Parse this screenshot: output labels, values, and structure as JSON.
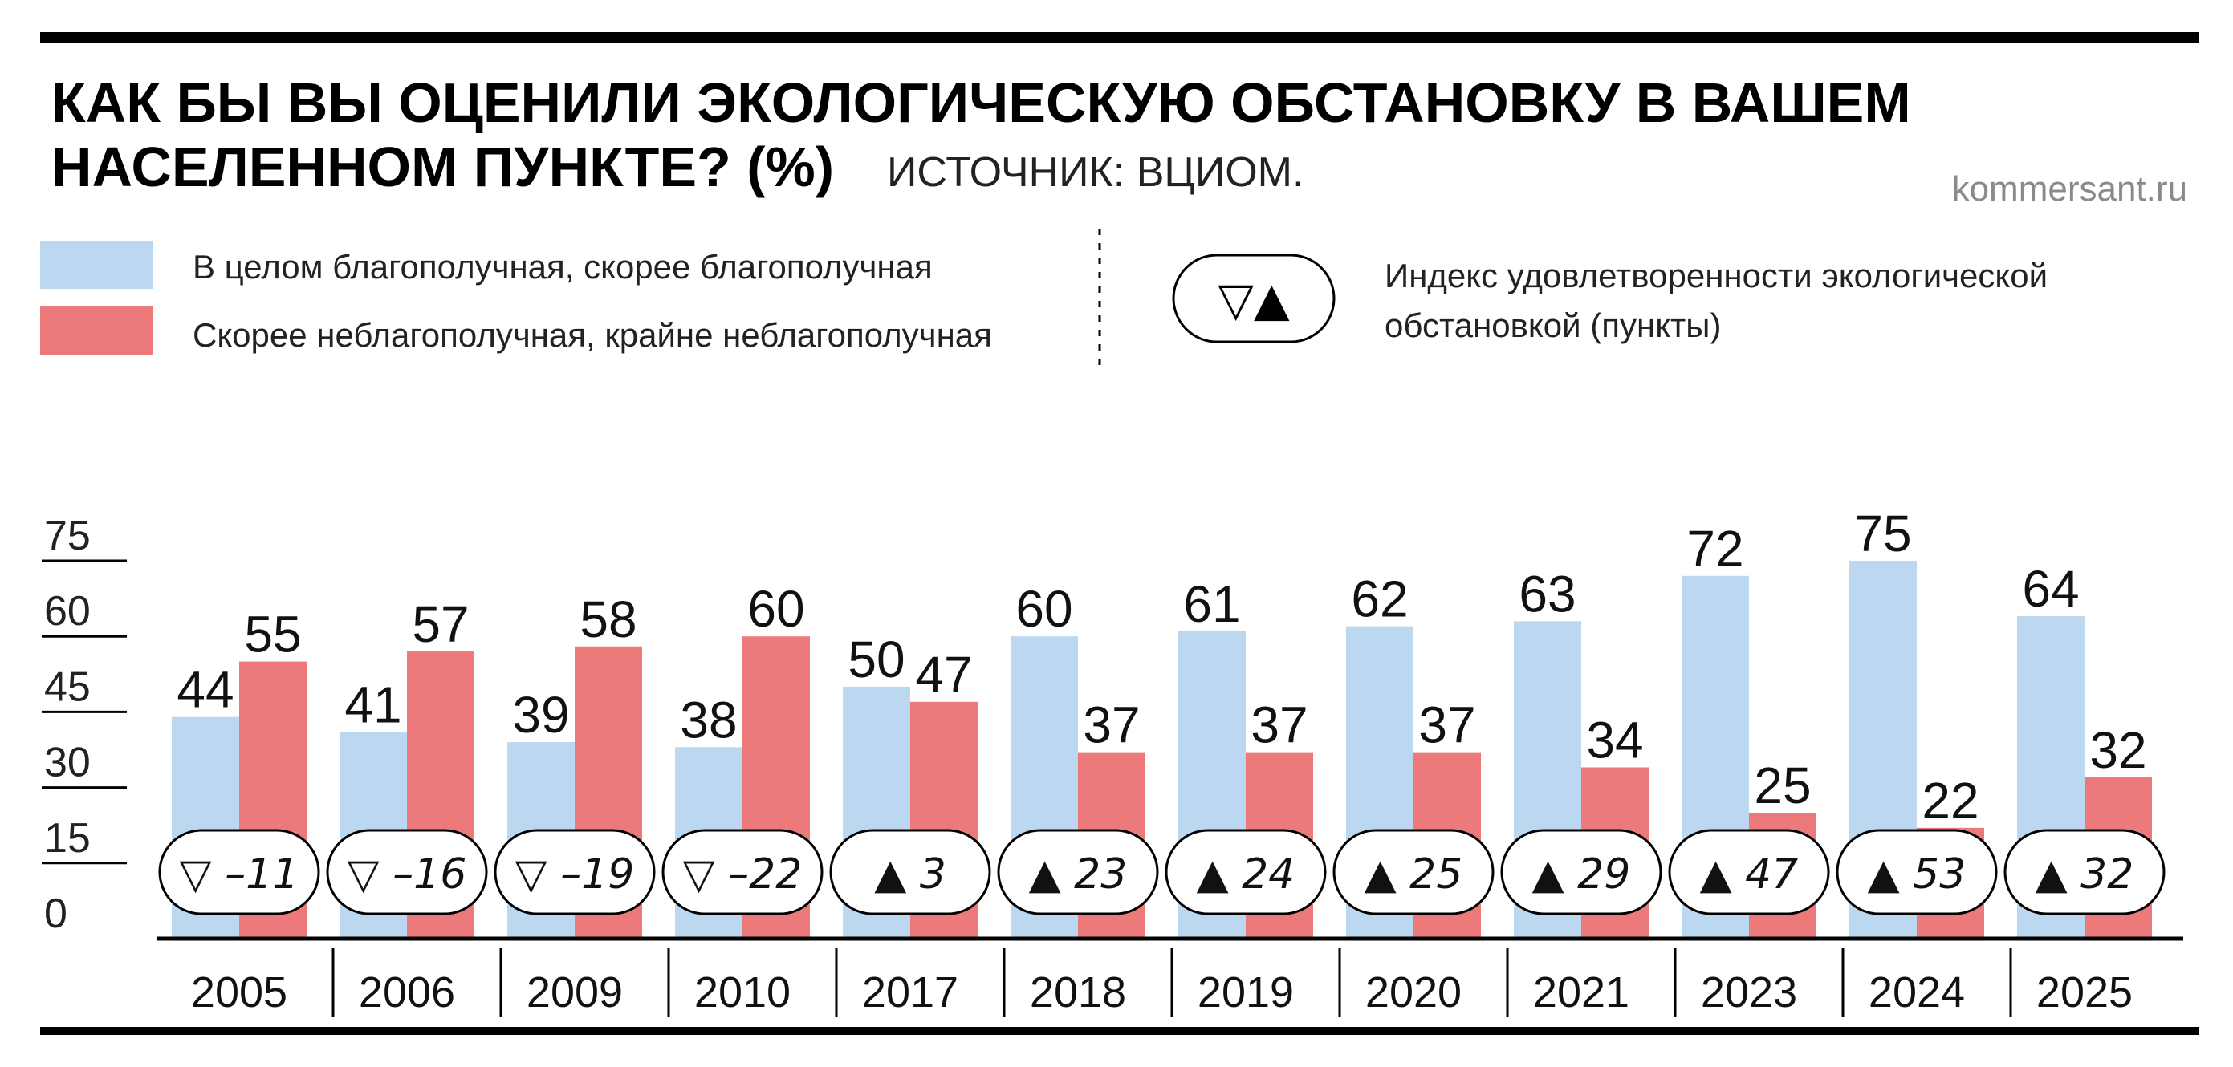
{
  "header": {
    "title_line1": "КАК БЫ ВЫ ОЦЕНИЛИ ЭКОЛОГИЧЕСКУЮ ОБСТАНОВКУ В ВАШЕМ",
    "title_line2": "НАСЕЛЕННОМ ПУНКТЕ? (%)",
    "source": "ИСТОЧНИК: ВЦИОМ.",
    "brand": "kommersant.ru"
  },
  "legend": {
    "positive": "В целом благополучная, скорее благополучная",
    "negative": "Скорее неблагополучная, крайне неблагополучная",
    "index_symbol": "▽▲",
    "index_line1": "Индекс удовлетворенности экологической",
    "index_line2": "обстановкой (пункты)"
  },
  "colors": {
    "positive": "#bcd7f0",
    "negative": "#ec7a7a",
    "axis": "#000000"
  },
  "chart_data": {
    "type": "bar",
    "title": "КАК БЫ ВЫ ОЦЕНИЛИ ЭКОЛОГИЧЕСКУЮ ОБСТАНОВКУ В ВАШЕМ НАСЕЛЕННОМ ПУНКТЕ? (%)",
    "categories": [
      "2005",
      "2006",
      "2009",
      "2010",
      "2017",
      "2018",
      "2019",
      "2020",
      "2021",
      "2023",
      "2024",
      "2025"
    ],
    "series": [
      {
        "name": "В целом благополучная, скорее благополучная",
        "values": [
          44,
          41,
          39,
          38,
          50,
          60,
          61,
          62,
          63,
          72,
          75,
          64
        ]
      },
      {
        "name": "Скорее неблагополучная, крайне неблагополучная",
        "values": [
          55,
          57,
          58,
          60,
          47,
          37,
          37,
          37,
          34,
          25,
          22,
          32
        ]
      }
    ],
    "index": {
      "name": "Индекс удовлетворенности экологической обстановкой (пункты)",
      "values": [
        -11,
        -16,
        -19,
        -22,
        3,
        23,
        24,
        25,
        29,
        47,
        53,
        32
      ],
      "labels": [
        "▽ –11",
        "▽ –16",
        "▽ –19",
        "▽ –22",
        "▲ 3",
        "▲ 23",
        "▲ 24",
        "▲ 25",
        "▲ 29",
        "▲ 47",
        "▲ 53",
        "▲ 32"
      ]
    },
    "yticks": [
      "0",
      "15",
      "30",
      "45",
      "60",
      "75"
    ],
    "ylim": [
      0,
      75
    ],
    "xlabel": "",
    "ylabel": "",
    "legend_position": "top"
  }
}
